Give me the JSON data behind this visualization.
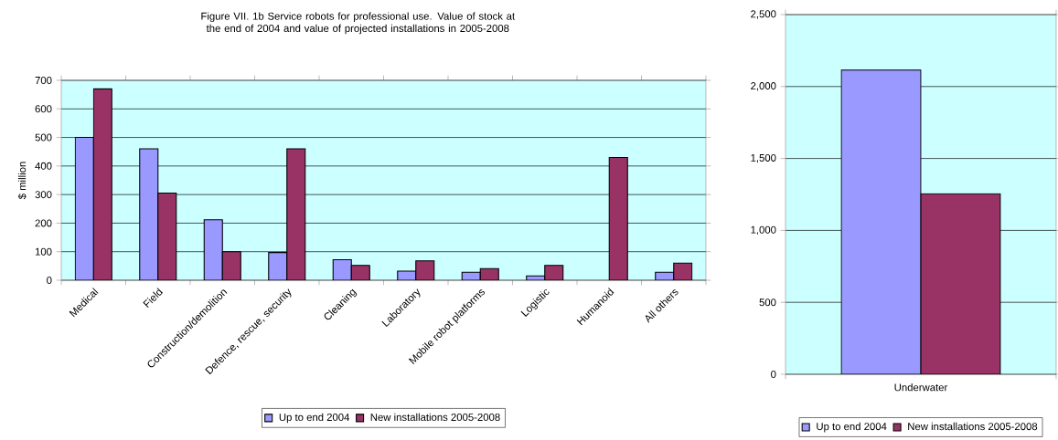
{
  "chart_data": [
    {
      "type": "bar",
      "title": "Figure VII. 1b  Service robots for professional use.  Value of stock at the end of 2004 and value of projected installations in 2005-2008",
      "ylabel": "$ million",
      "categories": [
        "Medical",
        "Field",
        "Construction/demolition",
        "Defence, rescue, security",
        "Cleaning",
        "Laboratory",
        "Mobile robot platforms",
        "Logistic",
        "Humanoid",
        "All others"
      ],
      "series": [
        {
          "name": "Up to end 2004",
          "color": "#9999ff",
          "values": [
            500,
            460,
            212,
            97,
            72,
            32,
            28,
            15,
            null,
            28
          ]
        },
        {
          "name": "New installations 2005-2008",
          "color": "#993366",
          "values": [
            670,
            305,
            100,
            460,
            52,
            68,
            41,
            52,
            430,
            60
          ]
        }
      ],
      "ylim": [
        0,
        700
      ],
      "yticks": [
        0,
        100,
        200,
        300,
        400,
        500,
        600,
        700
      ],
      "grid": "y",
      "legend": "bottom"
    },
    {
      "type": "bar",
      "categories": [
        "Underwater"
      ],
      "series": [
        {
          "name": "Up to end 2004",
          "color": "#9999ff",
          "values": [
            2115
          ]
        },
        {
          "name": "New installations 2005-2008",
          "color": "#993366",
          "values": [
            1255
          ]
        }
      ],
      "ylim": [
        0,
        2500
      ],
      "yticks": [
        0,
        500,
        {
          "value": 1000,
          "label": "1,000"
        },
        {
          "value": 1500,
          "label": "1,500"
        },
        {
          "value": 2000,
          "label": "2,000"
        },
        {
          "value": 2500,
          "label": "2,500"
        }
      ],
      "grid": "y",
      "legend": "bottom"
    }
  ]
}
